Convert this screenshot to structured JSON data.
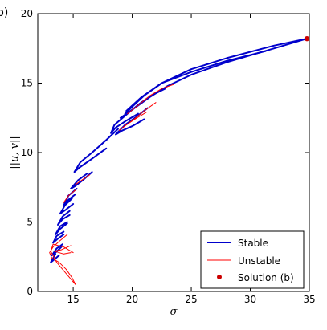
{
  "panel_label": "b)",
  "chart_data": {
    "type": "line",
    "xlabel": "σ",
    "ylabel": "||u, v||",
    "xlim": [
      12,
      35
    ],
    "ylim": [
      0,
      20
    ],
    "x_ticks": [
      15,
      20,
      25,
      30,
      35
    ],
    "y_ticks": [
      0,
      5,
      10,
      15,
      20
    ],
    "grid": false,
    "legend_position": "lower-right",
    "colors": {
      "stable": "#0000cc",
      "unstable": "#ff0000",
      "solution": "#cc0000"
    },
    "series": [
      {
        "name": "Stable",
        "style": "thick-line",
        "segments": [
          [
            [
              34.8,
              18.2
            ],
            [
              32,
              17.7
            ],
            [
              28,
              16.8
            ],
            [
              25,
              16.0
            ],
            [
              22.5,
              15.0
            ],
            [
              21,
              14.1
            ],
            [
              20,
              13.3
            ],
            [
              19.4,
              12.8
            ]
          ],
          [
            [
              34.8,
              18.2
            ],
            [
              32,
              17.5
            ],
            [
              28,
              16.5
            ],
            [
              25,
              15.6
            ],
            [
              23,
              14.8
            ],
            [
              21.5,
              14.0
            ],
            [
              20.2,
              13.2
            ],
            [
              19.0,
              12.5
            ]
          ],
          [
            [
              31.3,
              17.3
            ],
            [
              28,
              16.6
            ],
            [
              25,
              15.8
            ],
            [
              22.5,
              15.0
            ],
            [
              20.8,
              14.0
            ],
            [
              19.5,
              13.0
            ]
          ],
          [
            [
              20.5,
              12.8
            ],
            [
              19.5,
              12.3
            ],
            [
              18.6,
              11.8
            ],
            [
              18.2,
              11.4
            ],
            [
              18.5,
              12.0
            ],
            [
              19.6,
              12.8
            ],
            [
              20.6,
              13.5
            ],
            [
              21.6,
              14.1
            ],
            [
              22.8,
              14.6
            ]
          ],
          [
            [
              21.0,
              12.4
            ],
            [
              20.0,
              11.9
            ],
            [
              19.2,
              11.6
            ],
            [
              18.6,
              11.3
            ],
            [
              19.4,
              12.0
            ],
            [
              20.4,
              12.6
            ],
            [
              21.3,
              13.2
            ]
          ],
          [
            [
              17.8,
              10.3
            ],
            [
              16.5,
              9.5
            ],
            [
              15.5,
              8.9
            ],
            [
              15.1,
              8.6
            ],
            [
              15.6,
              9.3
            ],
            [
              16.6,
              10.0
            ],
            [
              17.8,
              10.9
            ],
            [
              18.8,
              11.7
            ]
          ],
          [
            [
              16.6,
              8.6
            ],
            [
              15.8,
              8.0
            ],
            [
              15.2,
              7.6
            ],
            [
              14.8,
              7.4
            ],
            [
              15.4,
              8.0
            ],
            [
              16.2,
              8.5
            ]
          ],
          [
            [
              15.2,
              7.0
            ],
            [
              14.6,
              6.6
            ],
            [
              14.2,
              6.2
            ],
            [
              14.6,
              6.9
            ],
            [
              15.3,
              7.4
            ]
          ],
          [
            [
              15.0,
              6.3
            ],
            [
              14.4,
              5.9
            ],
            [
              13.9,
              5.6
            ],
            [
              14.3,
              6.2
            ],
            [
              14.9,
              6.7
            ]
          ],
          [
            [
              14.7,
              5.5
            ],
            [
              14.1,
              5.2
            ],
            [
              13.7,
              4.8
            ],
            [
              14.1,
              5.4
            ],
            [
              14.7,
              5.8
            ]
          ],
          [
            [
              14.5,
              4.9
            ],
            [
              13.9,
              4.5
            ],
            [
              13.5,
              4.1
            ],
            [
              13.9,
              4.7
            ],
            [
              14.5,
              5.0
            ]
          ],
          [
            [
              14.2,
              4.1
            ],
            [
              13.7,
              3.8
            ],
            [
              13.3,
              3.5
            ],
            [
              13.6,
              4.0
            ],
            [
              14.2,
              4.3
            ]
          ],
          [
            [
              14.0,
              3.2
            ],
            [
              13.5,
              2.8
            ],
            [
              13.2,
              2.6
            ],
            [
              13.6,
              3.1
            ],
            [
              14.1,
              3.4
            ]
          ],
          [
            [
              13.8,
              2.6
            ],
            [
              13.4,
              2.3
            ],
            [
              13.1,
              2.1
            ],
            [
              13.5,
              2.7
            ]
          ]
        ]
      },
      {
        "name": "Unstable",
        "style": "thin-line",
        "segments": [
          [
            [
              23.5,
              14.9
            ],
            [
              22.5,
              14.6
            ],
            [
              21.5,
              14.1
            ],
            [
              20.5,
              13.4
            ],
            [
              19.6,
              12.8
            ]
          ],
          [
            [
              22.0,
              13.6
            ],
            [
              21.0,
              13.0
            ],
            [
              20.0,
              12.3
            ],
            [
              19.2,
              11.8
            ]
          ],
          [
            [
              21.2,
              12.9
            ],
            [
              20.4,
              12.5
            ],
            [
              19.5,
              12.0
            ],
            [
              18.9,
              11.6
            ]
          ],
          [
            [
              14.5,
              4.1
            ],
            [
              13.8,
              3.6
            ],
            [
              13.3,
              3.2
            ],
            [
              13.0,
              2.8
            ],
            [
              13.2,
              2.4
            ],
            [
              13.8,
              2.1
            ],
            [
              14.4,
              1.6
            ],
            [
              14.9,
              1.0
            ],
            [
              15.2,
              0.5
            ],
            [
              14.3,
              1.4
            ],
            [
              13.6,
              2.1
            ],
            [
              13.1,
              2.9
            ],
            [
              13.3,
              3.4
            ],
            [
              14.2,
              3.2
            ],
            [
              15.0,
              2.8
            ]
          ],
          [
            [
              14.8,
              3.3
            ],
            [
              14.0,
              3.0
            ],
            [
              13.4,
              2.9
            ],
            [
              14.2,
              2.7
            ],
            [
              14.8,
              2.8
            ]
          ],
          [
            [
              15.2,
              7.3
            ],
            [
              14.6,
              6.9
            ],
            [
              14.2,
              6.4
            ]
          ],
          [
            [
              16.4,
              8.4
            ],
            [
              15.7,
              8.0
            ],
            [
              15.2,
              7.7
            ]
          ]
        ]
      },
      {
        "name": "Solution (b)",
        "style": "marker",
        "points": [
          [
            34.8,
            18.2
          ]
        ]
      }
    ]
  }
}
